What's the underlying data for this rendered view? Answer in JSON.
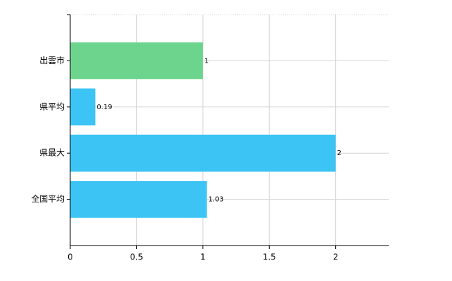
{
  "chart_data": {
    "type": "hbar",
    "categories": [
      "出雲市",
      "県平均",
      "県最大",
      "全国平均"
    ],
    "values": [
      1,
      0.19,
      2,
      1.03
    ],
    "colors": [
      "#6dd48d",
      "#3cc4f4",
      "#3cc4f4",
      "#3cc4f4"
    ],
    "xlim": [
      0,
      2.4
    ],
    "xticks": [
      0,
      0.5,
      1,
      1.5,
      2
    ],
    "grid": true
  }
}
